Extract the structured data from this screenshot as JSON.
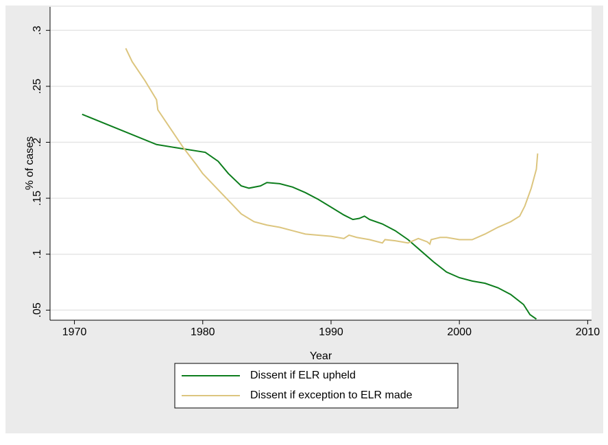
{
  "chart_data": {
    "type": "line",
    "x_label": "Year",
    "y_label": "% of cases",
    "xlim": [
      1968.1,
      2010.3
    ],
    "ylim": [
      0.041,
      0.321
    ],
    "xticks": [
      1970,
      1980,
      1990,
      2000,
      2010
    ],
    "yticks": [
      {
        "value": 0.05,
        "label": ".05"
      },
      {
        "value": 0.1,
        "label": ".1"
      },
      {
        "value": 0.15,
        "label": ".15"
      },
      {
        "value": 0.2,
        "label": ".2"
      },
      {
        "value": 0.25,
        "label": ".25"
      },
      {
        "value": 0.3,
        "label": ".3"
      }
    ],
    "grid": true,
    "legend": "bottom",
    "series": [
      {
        "name": "Dissent if ELR upheld",
        "color": "#0c7d1c",
        "x": [
          1970.6,
          1976.4,
          1978,
          1980.2,
          1981.2,
          1982,
          1983,
          1983.6,
          1984.5,
          1985,
          1986,
          1987,
          1988,
          1989,
          1990,
          1991,
          1991.7,
          1992.2,
          1992.6,
          1993,
          1994,
          1995,
          1996,
          1997,
          1998,
          1999,
          2000,
          2001,
          2002,
          2003,
          2004,
          2005,
          2005.5,
          2006
        ],
        "values": [
          0.225,
          0.198,
          0.195,
          0.191,
          0.183,
          0.172,
          0.161,
          0.159,
          0.161,
          0.164,
          0.163,
          0.16,
          0.155,
          0.149,
          0.142,
          0.135,
          0.131,
          0.132,
          0.134,
          0.131,
          0.127,
          0.121,
          0.113,
          0.103,
          0.093,
          0.084,
          0.079,
          0.076,
          0.074,
          0.07,
          0.064,
          0.055,
          0.046,
          0.042
        ]
      },
      {
        "name": "Dissent if exception to ELR made",
        "color": "#dcc57e",
        "x": [
          1974,
          1974.5,
          1975.5,
          1976.4,
          1976.5,
          1977.5,
          1978.5,
          1979.5,
          1980,
          1981,
          1982,
          1983,
          1984,
          1985,
          1986,
          1987,
          1988,
          1989,
          1990,
          1991,
          1991.4,
          1992,
          1993,
          1994,
          1994.2,
          1995,
          1996,
          1996.8,
          1997.5,
          1997.7,
          1997.8,
          1998.5,
          1999,
          2000,
          2001,
          2002,
          2003,
          2004,
          2004.7,
          2005.1,
          2005.6,
          2006,
          2006.1
        ],
        "values": [
          0.284,
          0.272,
          0.255,
          0.238,
          0.229,
          0.212,
          0.195,
          0.18,
          0.172,
          0.16,
          0.148,
          0.136,
          0.129,
          0.126,
          0.124,
          0.121,
          0.118,
          0.117,
          0.116,
          0.114,
          0.117,
          0.115,
          0.113,
          0.11,
          0.113,
          0.112,
          0.11,
          0.114,
          0.111,
          0.109,
          0.113,
          0.115,
          0.115,
          0.113,
          0.113,
          0.118,
          0.124,
          0.129,
          0.134,
          0.143,
          0.159,
          0.176,
          0.19
        ]
      }
    ]
  }
}
